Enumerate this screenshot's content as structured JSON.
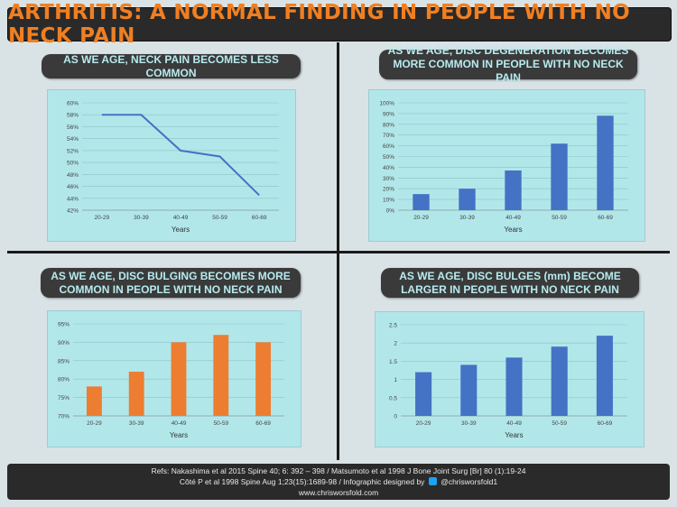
{
  "title": "ARTHRITIS: A NORMAL FINDING IN PEOPLE WITH NO NECK PAIN",
  "colors": {
    "accent": "#f07f22",
    "blue": "#4472c4",
    "orange": "#ed7d31",
    "plot_bg": "#b2e7ea",
    "pill_text": "#b7ebef"
  },
  "chart_data": [
    {
      "type": "line",
      "title": "AS WE AGE, NECK PAIN BECOMES LESS COMMON",
      "xlabel": "Years",
      "categories": [
        "20-29",
        "30-39",
        "40-49",
        "50-59",
        "60-69"
      ],
      "values": [
        58,
        58,
        52,
        51,
        44.5
      ],
      "yticks": [
        "42%",
        "44%",
        "46%",
        "48%",
        "50%",
        "52%",
        "54%",
        "56%",
        "58%",
        "60%"
      ],
      "ylim": [
        42,
        60
      ],
      "color": "#4472c4"
    },
    {
      "type": "bar",
      "title": "AS WE AGE, DISC DEGENERATION BECOMES MORE COMMON IN PEOPLE WITH NO NECK PAIN",
      "xlabel": "Years",
      "categories": [
        "20-29",
        "30-39",
        "40-49",
        "50-59",
        "60-69"
      ],
      "values": [
        15,
        20,
        37,
        62,
        88
      ],
      "yticks": [
        "0%",
        "10%",
        "20%",
        "30%",
        "40%",
        "50%",
        "60%",
        "70%",
        "80%",
        "90%",
        "100%"
      ],
      "ylim": [
        0,
        100
      ],
      "color": "#4472c4"
    },
    {
      "type": "bar",
      "title": "AS WE AGE, DISC BULGING BECOMES MORE COMMON IN PEOPLE WITH NO NECK PAIN",
      "xlabel": "Years",
      "categories": [
        "20-29",
        "30-39",
        "40-49",
        "50-59",
        "60-69"
      ],
      "values": [
        78,
        82,
        90,
        92,
        90
      ],
      "yticks": [
        "70%",
        "75%",
        "80%",
        "85%",
        "90%",
        "95%"
      ],
      "ylim": [
        70,
        95
      ],
      "color": "#ed7d31"
    },
    {
      "type": "bar",
      "title": "AS WE AGE, DISC BULGES (mm) BECOME LARGER IN PEOPLE WITH NO NECK PAIN",
      "xlabel": "Years",
      "categories": [
        "20-29",
        "30-39",
        "40-49",
        "50-59",
        "60-69"
      ],
      "values": [
        1.2,
        1.4,
        1.6,
        1.9,
        2.2
      ],
      "yticks": [
        "0",
        "0.5",
        "1",
        "1.5",
        "2",
        "2.5"
      ],
      "ylim": [
        0,
        2.5
      ],
      "color": "#4472c4"
    }
  ],
  "footer": {
    "line1": "Refs: Nakashima et al 2015 Spine 40; 6: 392 – 398 / Matsumoto et al 1998 J Bone Joint Surg [Br] 80 (1):19-24",
    "line2_a": "Côté P et al 1998 Spine Aug 1;23(15):1689-98 / Infographic designed by",
    "line2_b": "@chrisworsfold1",
    "line3": "www.chrisworsfold.com"
  }
}
